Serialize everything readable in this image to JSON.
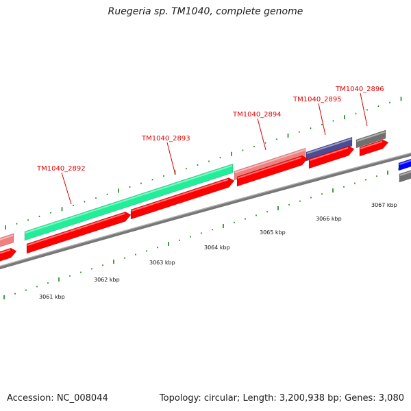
{
  "title": "Ruegeria sp. TM1040, complete genome",
  "footer": {
    "accession": "Accession: NC_008044",
    "summary": "Topology: circular; Length: 3,200,938 bp; Genes: 3,080"
  },
  "gene_labels": [
    "TM1040_2892",
    "TM1040_2893",
    "TM1040_2894",
    "TM1040_2895",
    "TM1040_2896"
  ],
  "kbp_labels": [
    "3061 kbp",
    "3062 kbp",
    "3063 kbp",
    "3064 kbp",
    "3065 kbp",
    "3066 kbp",
    "3067 kbp"
  ],
  "colors": {
    "backbone": "#8a8a8a",
    "cds": "#ff0000",
    "gene_light": "#f08080",
    "gene_teal": "#22ee99",
    "gene_navy": "#4b4b96",
    "gene_grey": "#707070",
    "gene_blue": "#0000ff",
    "tick": "#0a8a0a",
    "label": "#dd0000"
  }
}
